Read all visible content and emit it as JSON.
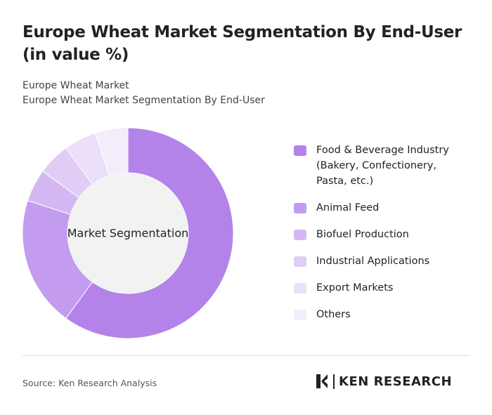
{
  "chart_data": {
    "type": "donut",
    "title": "Europe Wheat Market Segmentation By End-User (in value %)",
    "subtitle": [
      "Europe Wheat Market",
      "Europe Wheat Market Segmentation By End-User"
    ],
    "center_label": "Market Segmentation",
    "categories": [
      "Food & Beverage Industry (Bakery, Confectionery, Pasta, etc.)",
      "Animal Feed",
      "Biofuel Production",
      "Industrial Applications",
      "Export Markets",
      "Others"
    ],
    "values": [
      60,
      20,
      5,
      5,
      5,
      5
    ],
    "colors": [
      "#b383ea",
      "#c39bef",
      "#d5b8f3",
      "#e0cdf6",
      "#ebdff9",
      "#f3ecfb"
    ],
    "legend": "right"
  },
  "footer": {
    "source": "Source: Ken Research Analysis",
    "logo": "KEN RESEARCH"
  }
}
